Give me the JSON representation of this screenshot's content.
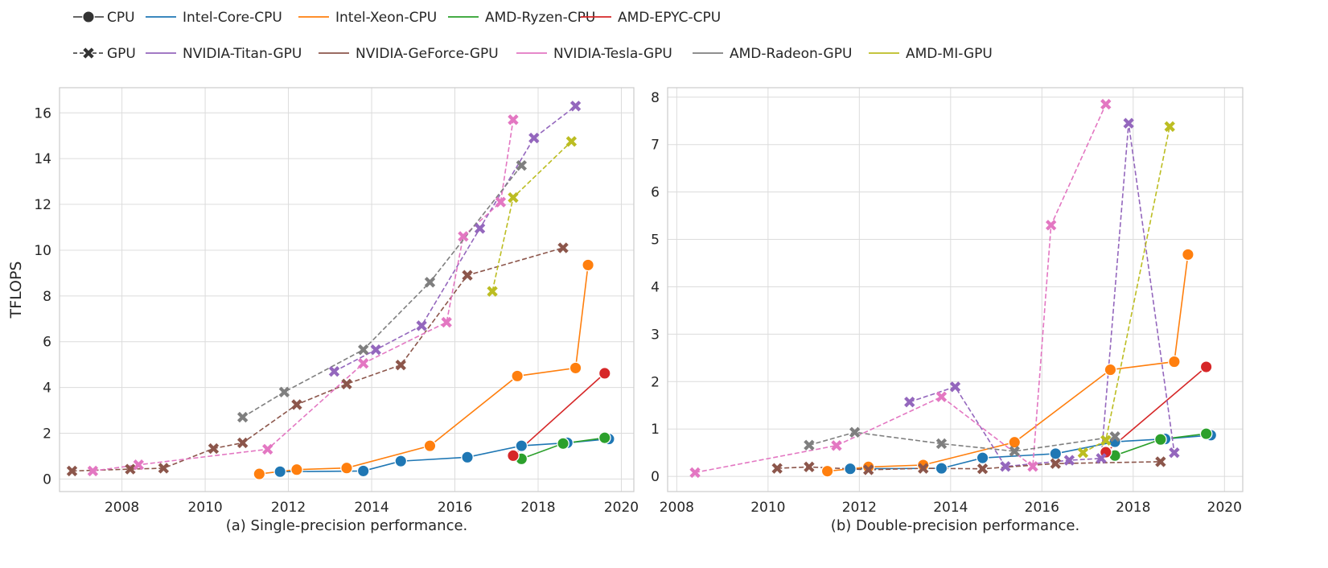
{
  "chart_data": [
    {
      "type": "line",
      "caption": "(a) Single-precision performance.",
      "ylabel": "TFLOPS",
      "xlim": [
        2006.5,
        2020.3
      ],
      "ylim": [
        -0.55,
        17.1
      ],
      "xticks": [
        2008,
        2010,
        2012,
        2014,
        2016,
        2018,
        2020
      ],
      "yticks": [
        0,
        2,
        4,
        6,
        8,
        10,
        12,
        14,
        16
      ],
      "grid": true,
      "series": [
        {
          "name": "Intel-Core-CPU",
          "kind": "cpu",
          "x": [
            2011.8,
            2013.8,
            2014.7,
            2016.3,
            2017.6,
            2018.7,
            2019.7
          ],
          "y": [
            0.32,
            0.35,
            0.78,
            0.95,
            1.45,
            1.58,
            1.75
          ]
        },
        {
          "name": "Intel-Xeon-CPU",
          "kind": "cpu",
          "x": [
            2011.3,
            2012.2,
            2013.4,
            2015.4,
            2017.5,
            2018.9,
            2019.2
          ],
          "y": [
            0.22,
            0.41,
            0.48,
            1.45,
            4.5,
            4.85,
            9.35
          ]
        },
        {
          "name": "AMD-Ryzen-CPU",
          "kind": "cpu",
          "x": [
            2017.6,
            2018.6,
            2019.6
          ],
          "y": [
            0.88,
            1.55,
            1.8
          ]
        },
        {
          "name": "AMD-EPYC-CPU",
          "kind": "cpu",
          "x": [
            2017.4,
            2019.6
          ],
          "y": [
            1.02,
            4.62
          ]
        },
        {
          "name": "NVIDIA-Titan-GPU",
          "kind": "gpu",
          "x": [
            2013.1,
            2014.1,
            2015.2,
            2016.6,
            2017.9,
            2018.9
          ],
          "y": [
            4.7,
            5.65,
            6.7,
            10.95,
            14.9,
            16.3
          ]
        },
        {
          "name": "NVIDIA-GeForce-GPU",
          "kind": "gpu",
          "x": [
            2006.8,
            2008.2,
            2009.0,
            2010.2,
            2010.9,
            2012.2,
            2013.4,
            2014.7,
            2016.3,
            2018.6
          ],
          "y": [
            0.35,
            0.43,
            0.47,
            1.33,
            1.58,
            3.25,
            4.15,
            4.98,
            8.9,
            10.1
          ]
        },
        {
          "name": "NVIDIA-Tesla-GPU",
          "kind": "gpu",
          "x": [
            2007.3,
            2008.4,
            2011.5,
            2013.8,
            2015.8,
            2016.2,
            2017.1,
            2017.4
          ],
          "y": [
            0.35,
            0.62,
            1.3,
            5.05,
            6.85,
            10.6,
            12.1,
            15.7
          ]
        },
        {
          "name": "AMD-Radeon-GPU",
          "kind": "gpu",
          "x": [
            2010.9,
            2011.9,
            2013.8,
            2015.4,
            2017.6
          ],
          "y": [
            2.7,
            3.8,
            5.65,
            8.6,
            13.7
          ]
        },
        {
          "name": "AMD-MI-GPU",
          "kind": "gpu",
          "x": [
            2016.9,
            2017.4,
            2018.8
          ],
          "y": [
            8.2,
            12.3,
            14.75
          ]
        }
      ]
    },
    {
      "type": "line",
      "caption": "(b) Double-precision performance.",
      "ylabel": "",
      "xlim": [
        2007.8,
        2020.4
      ],
      "ylim": [
        -0.32,
        8.2
      ],
      "xticks": [
        2008,
        2010,
        2012,
        2014,
        2016,
        2018,
        2020
      ],
      "yticks": [
        0,
        1,
        2,
        3,
        4,
        5,
        6,
        7,
        8
      ],
      "grid": true,
      "series": [
        {
          "name": "Intel-Core-CPU",
          "kind": "cpu",
          "x": [
            2011.8,
            2013.8,
            2014.7,
            2016.3,
            2017.6,
            2018.7,
            2019.7
          ],
          "y": [
            0.16,
            0.17,
            0.39,
            0.48,
            0.73,
            0.79,
            0.87
          ]
        },
        {
          "name": "Intel-Xeon-CPU",
          "kind": "cpu",
          "x": [
            2011.3,
            2012.2,
            2013.4,
            2015.4,
            2017.5,
            2018.9,
            2019.2
          ],
          "y": [
            0.11,
            0.2,
            0.24,
            0.72,
            2.25,
            2.42,
            4.68
          ]
        },
        {
          "name": "AMD-Ryzen-CPU",
          "kind": "cpu",
          "x": [
            2017.6,
            2018.6,
            2019.6
          ],
          "y": [
            0.44,
            0.78,
            0.9
          ]
        },
        {
          "name": "AMD-EPYC-CPU",
          "kind": "cpu",
          "x": [
            2017.4,
            2019.6
          ],
          "y": [
            0.51,
            2.31
          ]
        },
        {
          "name": "NVIDIA-Titan-GPU",
          "kind": "gpu",
          "x": [
            2013.1,
            2014.1,
            2015.2,
            2016.6,
            2017.3,
            2017.9,
            2018.9
          ],
          "y": [
            1.57,
            1.89,
            0.21,
            0.34,
            0.38,
            7.45,
            0.5
          ]
        },
        {
          "name": "NVIDIA-GeForce-GPU",
          "kind": "gpu",
          "x": [
            2010.2,
            2010.9,
            2012.2,
            2013.4,
            2014.7,
            2016.3,
            2018.6
          ],
          "y": [
            0.17,
            0.2,
            0.14,
            0.17,
            0.16,
            0.27,
            0.31
          ]
        },
        {
          "name": "NVIDIA-Tesla-GPU",
          "kind": "gpu",
          "x": [
            2008.4,
            2011.5,
            2013.8,
            2015.8,
            2016.2,
            2017.4
          ],
          "y": [
            0.08,
            0.65,
            1.68,
            0.21,
            5.3,
            7.85
          ]
        },
        {
          "name": "AMD-Radeon-GPU",
          "kind": "gpu",
          "x": [
            2010.9,
            2011.9,
            2013.8,
            2015.4,
            2017.6
          ],
          "y": [
            0.66,
            0.93,
            0.69,
            0.53,
            0.84
          ]
        },
        {
          "name": "AMD-MI-GPU",
          "kind": "gpu",
          "x": [
            2016.9,
            2017.4,
            2018.8
          ],
          "y": [
            0.5,
            0.76,
            7.38
          ]
        }
      ]
    }
  ],
  "legend": {
    "cpu_label": "CPU",
    "gpu_label": "GPU",
    "colors": {
      "Intel-Core-CPU": "#1f77b4",
      "Intel-Xeon-CPU": "#ff7f0e",
      "AMD-Ryzen-CPU": "#2ca02c",
      "AMD-EPYC-CPU": "#d62728",
      "NVIDIA-Titan-GPU": "#9467bd",
      "NVIDIA-GeForce-GPU": "#8c564b",
      "NVIDIA-Tesla-GPU": "#e377c2",
      "AMD-Radeon-GPU": "#7f7f7f",
      "AMD-MI-GPU": "#bcbd22"
    },
    "row1": [
      "Intel-Core-CPU",
      "Intel-Xeon-CPU",
      "AMD-Ryzen-CPU",
      "AMD-EPYC-CPU"
    ],
    "row2": [
      "NVIDIA-Titan-GPU",
      "NVIDIA-GeForce-GPU",
      "NVIDIA-Tesla-GPU",
      "AMD-Radeon-GPU",
      "AMD-MI-GPU"
    ],
    "marker_icons": {
      "cpu": "circle-icon",
      "gpu": "cross-icon"
    }
  }
}
